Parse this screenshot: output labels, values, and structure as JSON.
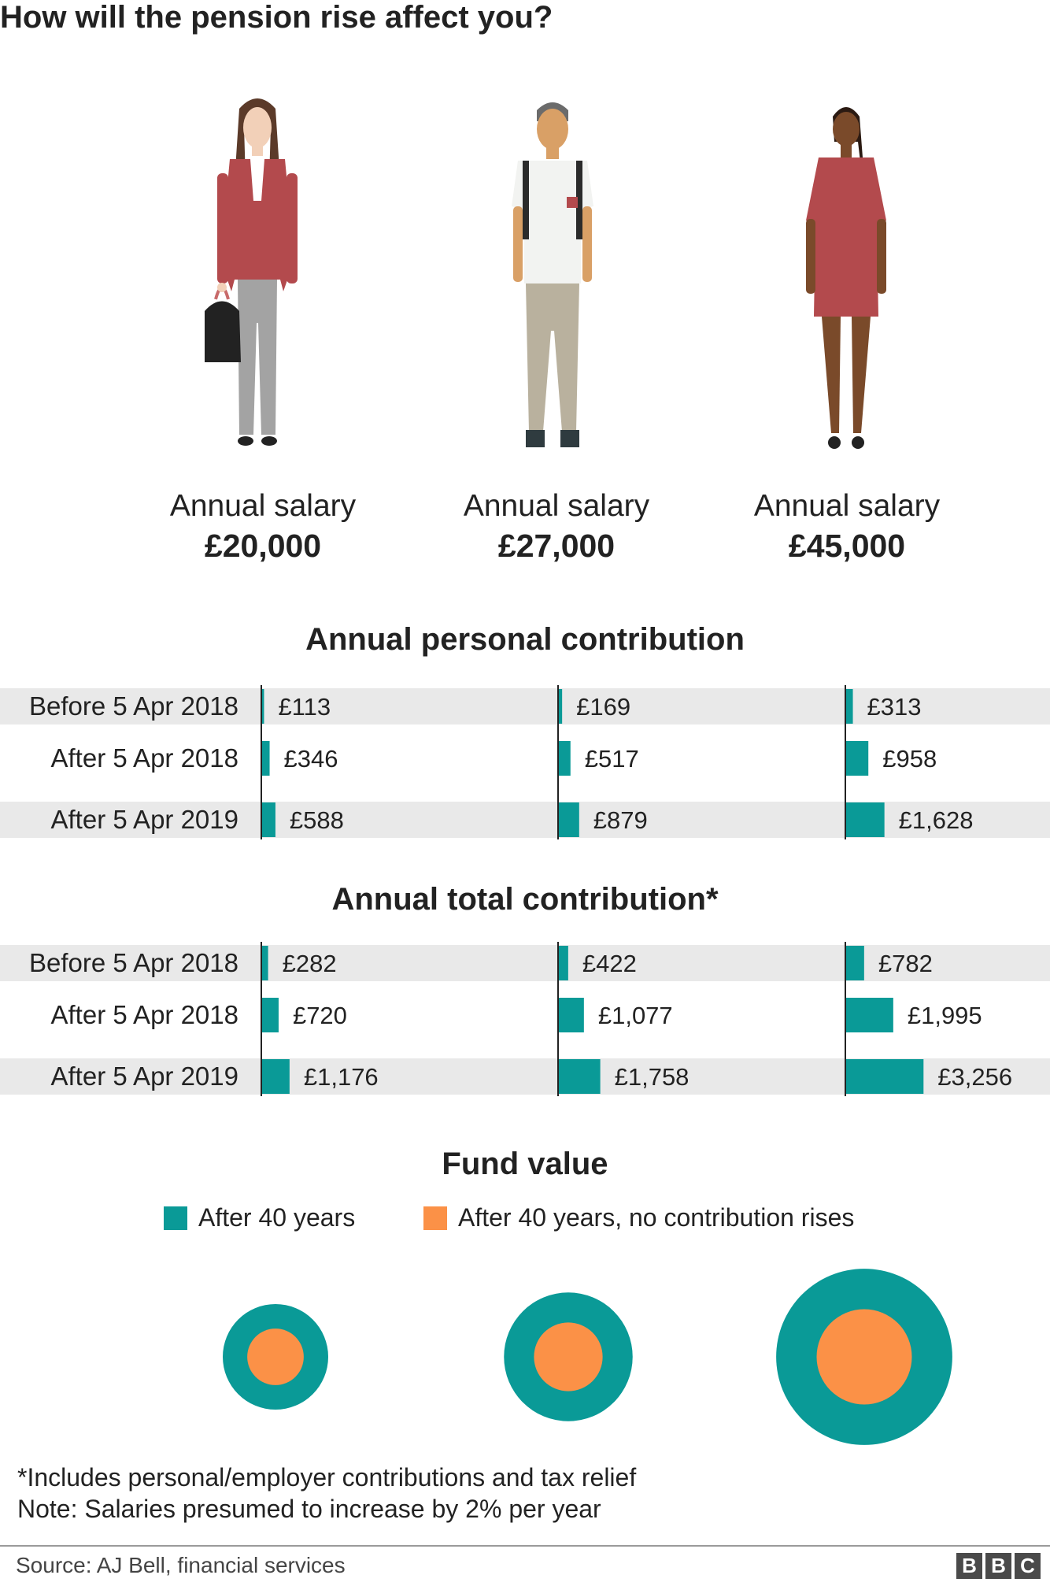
{
  "title": "How will the pension rise affect you?",
  "people": [
    {
      "figure": "woman-with-handbag-icon",
      "salary_label": "Annual salary",
      "salary_value": "£20,000"
    },
    {
      "figure": "man-with-backpack-icon",
      "salary_label": "Annual salary",
      "salary_value": "£27,000"
    },
    {
      "figure": "woman-in-dress-icon",
      "salary_label": "Annual salary",
      "salary_value": "£45,000"
    }
  ],
  "colors": {
    "teal": "#0a9a97",
    "orange": "#fb9147",
    "row_shade": "#e9e9e9",
    "axis": "#222222"
  },
  "chart_data": [
    {
      "type": "bar",
      "title": "Annual personal contribution",
      "row_labels": [
        "Before 5 Apr 2018",
        "After 5 Apr 2018",
        "After 5 Apr 2019"
      ],
      "groups": [
        "£20,000",
        "£27,000",
        "£45,000"
      ],
      "values": [
        [
          113,
          346,
          588
        ],
        [
          169,
          517,
          879
        ],
        [
          313,
          958,
          1628
        ]
      ],
      "value_labels": [
        [
          "£113",
          "£346",
          "£588"
        ],
        [
          "£169",
          "£517",
          "£879"
        ],
        [
          "£313",
          "£958",
          "£1,628"
        ]
      ],
      "orientation": "horizontal",
      "xlim": [
        0,
        3500
      ]
    },
    {
      "type": "bar",
      "title": "Annual total contribution*",
      "row_labels": [
        "Before 5 Apr 2018",
        "After 5 Apr 2018",
        "After 5 Apr 2019"
      ],
      "groups": [
        "£20,000",
        "£27,000",
        "£45,000"
      ],
      "values": [
        [
          282,
          720,
          1176
        ],
        [
          422,
          1077,
          1758
        ],
        [
          782,
          1995,
          3256
        ]
      ],
      "value_labels": [
        [
          "£282",
          "£720",
          "£1,176"
        ],
        [
          "£422",
          "£1,077",
          "£1,758"
        ],
        [
          "£782",
          "£1,995",
          "£3,256"
        ]
      ],
      "orientation": "horizontal",
      "xlim": [
        0,
        3500
      ]
    },
    {
      "type": "bubble",
      "title": "Fund value",
      "legend": [
        "After 40 years",
        "After 40 years, no contribution rises"
      ],
      "groups": [
        "£20,000",
        "£27,000",
        "£45,000"
      ],
      "relative_size_after_40_years": [
        1.0,
        1.22,
        1.67
      ],
      "relative_size_no_rises": [
        0.51,
        0.62,
        0.86
      ]
    }
  ],
  "notes": [
    "*Includes personal/employer contributions and tax relief",
    "Note: Salaries presumed to increase by 2% per year"
  ],
  "source": "Source: AJ Bell, financial services",
  "logo": [
    "B",
    "B",
    "C"
  ]
}
